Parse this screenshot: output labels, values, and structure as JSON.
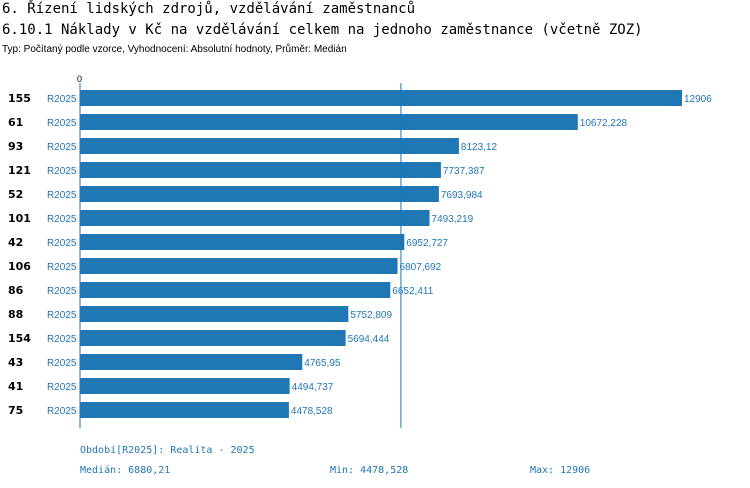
{
  "header": {
    "title": "6. Řízení lidských zdrojů, vzdělávání zaměstnanců",
    "subtitle": "6.10.1 Náklady v Kč na vzdělávání celkem na jednoho zaměstnance (včetně ZOZ)",
    "type_line": "Typ: Počítaný podle vzorce, Vyhodnocení: Absolutní hodnoty, Průměr: Medián"
  },
  "colors": {
    "bar": "#1f77b4",
    "text_blue": "#1f77b4",
    "axis": "#1f77b4"
  },
  "chart_data": {
    "type": "bar",
    "orientation": "horizontal",
    "axis_zero_label": "0",
    "xlim": [
      0,
      12906
    ],
    "reference_line": {
      "label": "Medián",
      "value": 6880.21
    },
    "series_label": "R2025",
    "rows": [
      {
        "id": "155",
        "period": "R2025",
        "value": 12906,
        "label": "12906"
      },
      {
        "id": "61",
        "period": "R2025",
        "value": 10672.228,
        "label": "10672,228"
      },
      {
        "id": "93",
        "period": "R2025",
        "value": 8123.12,
        "label": "8123,12"
      },
      {
        "id": "121",
        "period": "R2025",
        "value": 7737.387,
        "label": "7737,387"
      },
      {
        "id": "52",
        "period": "R2025",
        "value": 7693.984,
        "label": "7693,984"
      },
      {
        "id": "101",
        "period": "R2025",
        "value": 7493.219,
        "label": "7493,219"
      },
      {
        "id": "42",
        "period": "R2025",
        "value": 6952.727,
        "label": "6952,727"
      },
      {
        "id": "106",
        "period": "R2025",
        "value": 6807.692,
        "label": "6807,692"
      },
      {
        "id": "86",
        "period": "R2025",
        "value": 6652.411,
        "label": "6652,411"
      },
      {
        "id": "88",
        "period": "R2025",
        "value": 5752.809,
        "label": "5752,809"
      },
      {
        "id": "154",
        "period": "R2025",
        "value": 5694.444,
        "label": "5694,444"
      },
      {
        "id": "43",
        "period": "R2025",
        "value": 4765.95,
        "label": "4765,95"
      },
      {
        "id": "41",
        "period": "R2025",
        "value": 4494.737,
        "label": "4494,737"
      },
      {
        "id": "75",
        "period": "R2025",
        "value": 4478.528,
        "label": "4478,528"
      }
    ]
  },
  "footer": {
    "period_legend": "Období[R2025]: Realita - 2025",
    "median": "Medián: 6880,21",
    "min": "Min: 4478,528",
    "max": "Max: 12906"
  }
}
